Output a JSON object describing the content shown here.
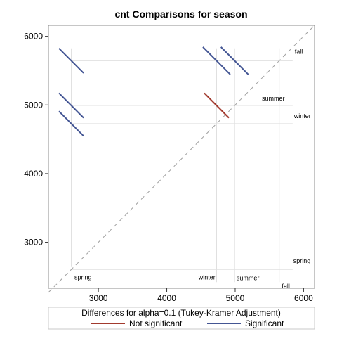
{
  "chart_data": {
    "type": "diffogram",
    "title": "cnt Comparisons for season",
    "xlim": [
      2270,
      6160
    ],
    "ylim": [
      2330,
      6160
    ],
    "x_ticks": [
      3000,
      4000,
      5000,
      6000
    ],
    "y_ticks": [
      3000,
      4000,
      5000,
      6000
    ],
    "levels": [
      {
        "label": "spring",
        "mean": 2604
      },
      {
        "label": "winter",
        "mean": 4728
      },
      {
        "label": "summer",
        "mean": 4992
      },
      {
        "label": "fall",
        "mean": 5644
      }
    ],
    "top_labels": [
      "fall",
      "summer",
      "winter"
    ],
    "right_labels": [
      "fall",
      "summer",
      "winter",
      "spring"
    ],
    "bottom_labels": [
      "spring",
      "winter",
      "summer",
      "fall"
    ],
    "comparisons": [
      {
        "pair": [
          "winter",
          "fall"
        ],
        "x_center": 4728,
        "y_center": 5644,
        "x1": 4528,
        "y1": 5844,
        "x2": 4928,
        "y2": 5444,
        "significant": true
      },
      {
        "pair": [
          "summer",
          "fall"
        ],
        "x_center": 4992,
        "y_center": 5644,
        "x1": 4792,
        "y1": 5844,
        "x2": 5192,
        "y2": 5444,
        "significant": true
      },
      {
        "pair": [
          "spring",
          "fall"
        ],
        "x_center": 2604,
        "y_center": 5644,
        "x1": 2424,
        "y1": 5824,
        "x2": 2784,
        "y2": 5464,
        "significant": true
      },
      {
        "pair": [
          "winter",
          "summer"
        ],
        "x_center": 4728,
        "y_center": 4992,
        "x1": 4548,
        "y1": 5172,
        "x2": 4908,
        "y2": 4812,
        "significant": false
      },
      {
        "pair": [
          "spring",
          "summer"
        ],
        "x_center": 2604,
        "y_center": 4992,
        "x1": 2424,
        "y1": 5172,
        "x2": 2784,
        "y2": 4812,
        "significant": true
      },
      {
        "pair": [
          "spring",
          "winter"
        ],
        "x_center": 2604,
        "y_center": 4728,
        "x1": 2424,
        "y1": 4908,
        "x2": 2784,
        "y2": 4548,
        "significant": true
      }
    ],
    "legend": {
      "title": "Differences for alpha=0.1 (Tukey-Kramer Adjustment)",
      "items": [
        {
          "label": "Not significant",
          "color": "#A23A2E"
        },
        {
          "label": "Significant",
          "color": "#445694"
        }
      ],
      "placement": "bottom"
    },
    "reference_line": "diagonal y=x dashed",
    "grid": false
  }
}
